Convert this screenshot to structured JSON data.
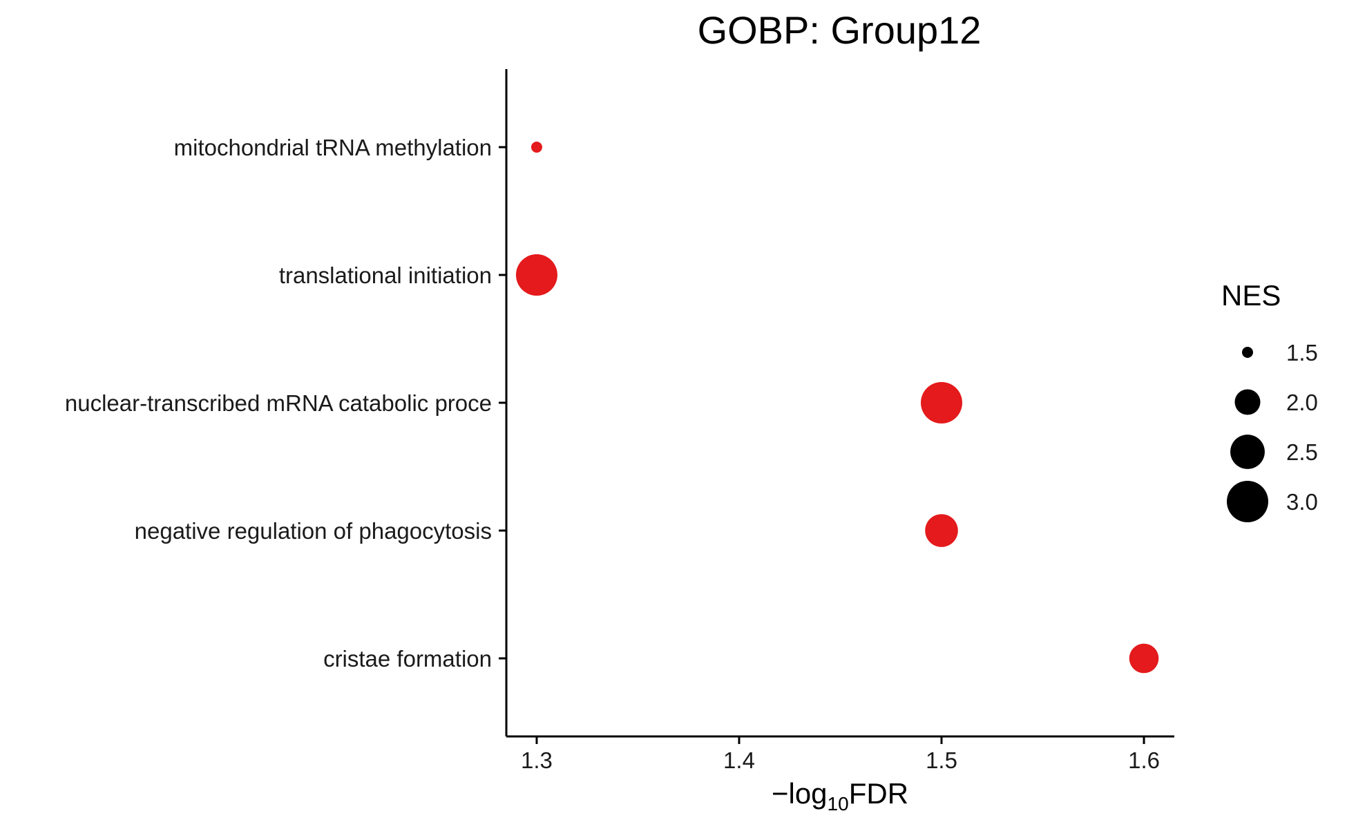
{
  "chart_data": {
    "type": "scatter",
    "title": "GOBP: Group12",
    "xlabel": {
      "prefix": "−log",
      "subscript": "10",
      "suffix": "FDR"
    },
    "ylabel": "",
    "xlim": [
      1.285,
      1.615
    ],
    "xticks": [
      1.3,
      1.4,
      1.5,
      1.6
    ],
    "xtick_labels": [
      "1.3",
      "1.4",
      "1.5",
      "1.6"
    ],
    "categories": [
      "mitochondrial tRNA methylation",
      "translational initiation",
      "nuclear-transcribed mRNA catabolic proce",
      "negative regulation of phagocytosis",
      "cristae formation"
    ],
    "points": [
      {
        "category": "mitochondrial tRNA methylation",
        "x": 1.3,
        "nes": 1.5
      },
      {
        "category": "translational initiation",
        "x": 1.3,
        "nes": 3.0
      },
      {
        "category": "nuclear-transcribed mRNA catabolic proce",
        "x": 1.5,
        "nes": 3.0
      },
      {
        "category": "negative regulation of phagocytosis",
        "x": 1.5,
        "nes": 2.4
      },
      {
        "category": "cristae formation",
        "x": 1.6,
        "nes": 2.2
      }
    ],
    "point_color": "#E41A1C",
    "size_legend": {
      "title": "NES",
      "values": [
        1.5,
        2.0,
        2.5,
        3.0
      ],
      "labels": [
        "1.5",
        "2.0",
        "2.5",
        "3.0"
      ],
      "color": "#000000",
      "position": "right"
    },
    "grid": false
  }
}
